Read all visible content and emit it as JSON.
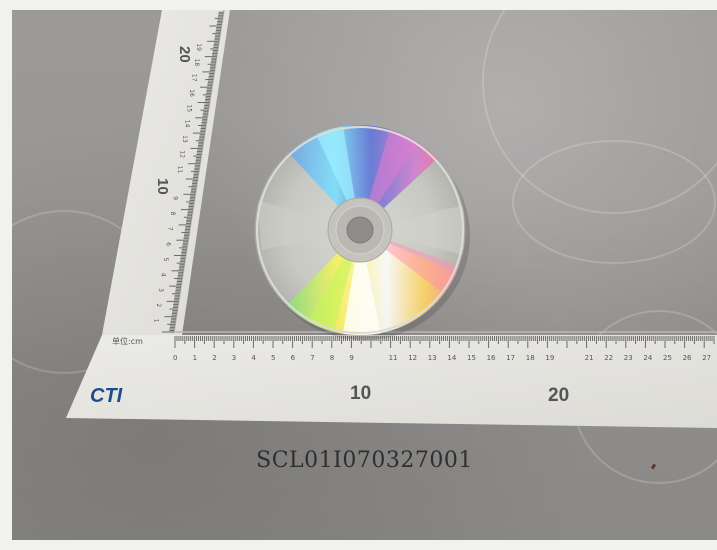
{
  "photo": {
    "subject": "optical-disc-with-calibration-ruler",
    "colors": {
      "background": "#92908e",
      "ruler": "#e5e4e0",
      "ruler_ink": "#5a5a5a",
      "disc_rim": "#b8b7b2"
    }
  },
  "ruler": {
    "brand": "CTI",
    "unit_label": "单位:cm",
    "major_labels": [
      "10",
      "20"
    ],
    "vertical_major_labels": [
      "10",
      "20"
    ]
  },
  "caption": {
    "code": "SCL01I070327001"
  }
}
